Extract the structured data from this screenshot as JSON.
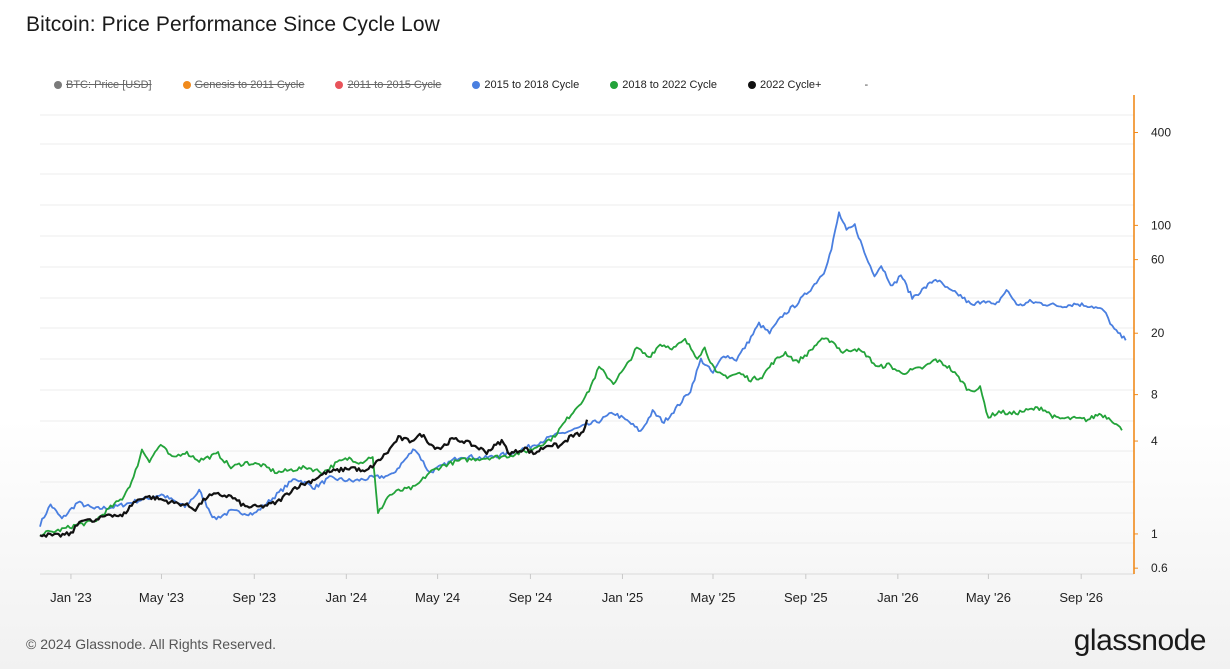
{
  "header": {
    "title": "Bitcoin: Price Performance Since Cycle Low"
  },
  "legend": {
    "items": [
      {
        "label": "BTC: Price [USD]",
        "color": "#7a7a7a",
        "hidden": true
      },
      {
        "label": "Genesis to 2011 Cycle",
        "color": "#f08a1c",
        "hidden": true
      },
      {
        "label": "2011 to 2015 Cycle",
        "color": "#e8535a",
        "hidden": true
      },
      {
        "label": "2015 to 2018 Cycle",
        "color": "#4a7fe0",
        "hidden": false
      },
      {
        "label": "2018 to 2022 Cycle",
        "color": "#23a33a",
        "hidden": false
      },
      {
        "label": "2022 Cycle+",
        "color": "#111111",
        "hidden": false
      }
    ],
    "trailing": "-"
  },
  "footer": {
    "copyright": "© 2024 Glassnode. All Rights Reserved.",
    "brand": "glassnode"
  },
  "chart_data": {
    "type": "line",
    "title": "Bitcoin: Price Performance Since Cycle Low",
    "xlabel": "",
    "ylabel": "",
    "y_scale": "log",
    "ylim": [
      0.55,
      700
    ],
    "y_ticks": [
      0.6,
      1,
      4,
      8,
      20,
      60,
      100,
      400
    ],
    "x_ticks": [
      "Jan '23",
      "May '23",
      "Sep '23",
      "Jan '24",
      "May '24",
      "Sep '24",
      "Jan '25",
      "May '25",
      "Sep '25",
      "Jan '26",
      "May '26",
      "Sep '26"
    ],
    "xlim": [
      "2022-11-21",
      "2026-11-10"
    ],
    "grid": true,
    "legend_position": "top",
    "series": [
      {
        "name": "2015 to 2018 Cycle",
        "color": "#4a7fe0",
        "points": [
          [
            "2022-11-21",
            1.15
          ],
          [
            "2022-12-05",
            1.55
          ],
          [
            "2022-12-20",
            1.25
          ],
          [
            "2023-01-10",
            1.6
          ],
          [
            "2023-02-01",
            1.45
          ],
          [
            "2023-03-01",
            1.5
          ],
          [
            "2023-04-01",
            1.65
          ],
          [
            "2023-05-01",
            1.8
          ],
          [
            "2023-06-01",
            1.5
          ],
          [
            "2023-06-20",
            1.9
          ],
          [
            "2023-07-10",
            1.25
          ],
          [
            "2023-08-01",
            1.4
          ],
          [
            "2023-09-01",
            1.35
          ],
          [
            "2023-10-01",
            1.8
          ],
          [
            "2023-10-25",
            2.3
          ],
          [
            "2023-11-20",
            2.0
          ],
          [
            "2023-12-10",
            2.3
          ],
          [
            "2024-01-10",
            2.2
          ],
          [
            "2024-02-01",
            2.3
          ],
          [
            "2024-03-01",
            2.4
          ],
          [
            "2024-04-01",
            3.6
          ],
          [
            "2024-04-20",
            2.5
          ],
          [
            "2024-05-10",
            2.8
          ],
          [
            "2024-06-01",
            3.2
          ],
          [
            "2024-07-01",
            3.1
          ],
          [
            "2024-08-01",
            3.3
          ],
          [
            "2024-09-01",
            3.7
          ],
          [
            "2024-10-01",
            4.3
          ],
          [
            "2024-11-01",
            4.8
          ],
          [
            "2024-12-01",
            5.4
          ],
          [
            "2024-12-20",
            6.1
          ],
          [
            "2025-01-10",
            5.3
          ],
          [
            "2025-01-25",
            4.6
          ],
          [
            "2025-02-10",
            6.2
          ],
          [
            "2025-02-25",
            5.3
          ],
          [
            "2025-03-15",
            6.7
          ],
          [
            "2025-04-01",
            8.5
          ],
          [
            "2025-04-15",
            13.5
          ],
          [
            "2025-05-01",
            11.0
          ],
          [
            "2025-05-15",
            14.5
          ],
          [
            "2025-06-01",
            13.5
          ],
          [
            "2025-06-15",
            17.0
          ],
          [
            "2025-07-01",
            23.0
          ],
          [
            "2025-07-15",
            20.0
          ],
          [
            "2025-08-01",
            26.0
          ],
          [
            "2025-08-20",
            31.0
          ],
          [
            "2025-09-10",
            40.0
          ],
          [
            "2025-09-25",
            50.0
          ],
          [
            "2025-10-05",
            70.0
          ],
          [
            "2025-10-15",
            120.0
          ],
          [
            "2025-10-25",
            92.0
          ],
          [
            "2025-11-05",
            100.0
          ],
          [
            "2025-11-20",
            62.0
          ],
          [
            "2025-12-01",
            48.0
          ],
          [
            "2025-12-10",
            55.0
          ],
          [
            "2025-12-25",
            40.0
          ],
          [
            "2026-01-05",
            48.0
          ],
          [
            "2026-01-20",
            34.0
          ],
          [
            "2026-02-05",
            39.0
          ],
          [
            "2026-02-20",
            45.0
          ],
          [
            "2026-03-10",
            38.0
          ],
          [
            "2026-03-25",
            35.0
          ],
          [
            "2026-04-10",
            30.0
          ],
          [
            "2026-04-25",
            33.0
          ],
          [
            "2026-05-10",
            30.0
          ],
          [
            "2026-05-25",
            38.0
          ],
          [
            "2026-06-10",
            30.0
          ],
          [
            "2026-06-25",
            32.0
          ],
          [
            "2026-07-15",
            31.0
          ],
          [
            "2026-08-05",
            30.0
          ],
          [
            "2026-08-25",
            31.0
          ],
          [
            "2026-09-15",
            30.0
          ],
          [
            "2026-10-01",
            28.0
          ],
          [
            "2026-10-15",
            21.0
          ],
          [
            "2026-10-30",
            18.0
          ]
        ]
      },
      {
        "name": "2018 to 2022 Cycle",
        "color": "#23a33a",
        "points": [
          [
            "2022-11-21",
            1.0
          ],
          [
            "2022-12-15",
            1.05
          ],
          [
            "2023-01-10",
            1.15
          ],
          [
            "2023-02-01",
            1.2
          ],
          [
            "2023-02-20",
            1.45
          ],
          [
            "2023-03-10",
            1.7
          ],
          [
            "2023-03-25",
            2.3
          ],
          [
            "2023-04-05",
            3.5
          ],
          [
            "2023-04-15",
            3.0
          ],
          [
            "2023-04-30",
            3.8
          ],
          [
            "2023-05-15",
            3.1
          ],
          [
            "2023-06-01",
            3.4
          ],
          [
            "2023-06-20",
            3.0
          ],
          [
            "2023-07-15",
            3.3
          ],
          [
            "2023-08-01",
            2.7
          ],
          [
            "2023-08-20",
            2.9
          ],
          [
            "2023-09-10",
            2.8
          ],
          [
            "2023-10-01",
            2.5
          ],
          [
            "2023-10-20",
            2.6
          ],
          [
            "2023-11-10",
            2.7
          ],
          [
            "2023-12-01",
            2.5
          ],
          [
            "2023-12-20",
            2.9
          ],
          [
            "2024-01-05",
            3.1
          ],
          [
            "2024-01-20",
            2.9
          ],
          [
            "2024-02-05",
            3.2
          ],
          [
            "2024-02-12",
            1.35
          ],
          [
            "2024-02-25",
            1.75
          ],
          [
            "2024-03-10",
            1.9
          ],
          [
            "2024-04-01",
            2.0
          ],
          [
            "2024-04-20",
            2.5
          ],
          [
            "2024-05-10",
            2.8
          ],
          [
            "2024-06-01",
            3.0
          ],
          [
            "2024-07-01",
            3.1
          ],
          [
            "2024-08-01",
            3.2
          ],
          [
            "2024-09-01",
            3.5
          ],
          [
            "2024-10-01",
            4.2
          ],
          [
            "2024-10-25",
            6.0
          ],
          [
            "2024-11-15",
            8.0
          ],
          [
            "2024-12-01",
            12.0
          ],
          [
            "2024-12-20",
            9.5
          ],
          [
            "2025-01-05",
            12.0
          ],
          [
            "2025-01-20",
            16.0
          ],
          [
            "2025-02-05",
            14.0
          ],
          [
            "2025-02-20",
            17.0
          ],
          [
            "2025-03-10",
            16.0
          ],
          [
            "2025-03-25",
            18.0
          ],
          [
            "2025-04-10",
            14.0
          ],
          [
            "2025-04-20",
            16.0
          ],
          [
            "2025-05-05",
            11.0
          ],
          [
            "2025-05-20",
            10.5
          ],
          [
            "2025-06-05",
            11.0
          ],
          [
            "2025-06-20",
            10.0
          ],
          [
            "2025-07-05",
            10.5
          ],
          [
            "2025-07-20",
            13.0
          ],
          [
            "2025-08-05",
            15.0
          ],
          [
            "2025-08-20",
            13.0
          ],
          [
            "2025-09-05",
            15.0
          ],
          [
            "2025-09-20",
            18.0
          ],
          [
            "2025-10-05",
            18.0
          ],
          [
            "2025-10-20",
            15.0
          ],
          [
            "2025-11-05",
            16.0
          ],
          [
            "2025-11-20",
            14.5
          ],
          [
            "2025-12-05",
            12.0
          ],
          [
            "2025-12-20",
            12.5
          ],
          [
            "2026-01-05",
            11.0
          ],
          [
            "2026-01-20",
            11.5
          ],
          [
            "2026-02-05",
            12.0
          ],
          [
            "2026-02-20",
            13.5
          ],
          [
            "2026-03-10",
            12.0
          ],
          [
            "2026-03-25",
            10.0
          ],
          [
            "2026-04-05",
            8.5
          ],
          [
            "2026-04-20",
            8.8
          ],
          [
            "2026-05-01",
            5.7
          ],
          [
            "2026-05-15",
            6.2
          ],
          [
            "2026-06-01",
            6.0
          ],
          [
            "2026-06-20",
            6.3
          ],
          [
            "2026-07-10",
            6.6
          ],
          [
            "2026-07-30",
            5.6
          ],
          [
            "2026-08-20",
            5.6
          ],
          [
            "2026-09-10",
            5.5
          ],
          [
            "2026-09-25",
            6.0
          ],
          [
            "2026-10-10",
            5.6
          ],
          [
            "2026-10-25",
            4.7
          ]
        ]
      },
      {
        "name": "2022 Cycle+",
        "color": "#111111",
        "points": [
          [
            "2022-11-21",
            1.0
          ],
          [
            "2022-12-10",
            0.97
          ],
          [
            "2023-01-01",
            1.0
          ],
          [
            "2023-01-15",
            1.25
          ],
          [
            "2023-02-01",
            1.2
          ],
          [
            "2023-02-20",
            1.35
          ],
          [
            "2023-03-10",
            1.3
          ],
          [
            "2023-03-25",
            1.6
          ],
          [
            "2023-04-10",
            1.75
          ],
          [
            "2023-04-25",
            1.7
          ],
          [
            "2023-05-15",
            1.6
          ],
          [
            "2023-06-01",
            1.55
          ],
          [
            "2023-06-15",
            1.45
          ],
          [
            "2023-07-01",
            1.75
          ],
          [
            "2023-07-15",
            1.8
          ],
          [
            "2023-08-01",
            1.75
          ],
          [
            "2023-08-20",
            1.5
          ],
          [
            "2023-09-10",
            1.5
          ],
          [
            "2023-10-01",
            1.6
          ],
          [
            "2023-10-25",
            2.0
          ],
          [
            "2023-11-15",
            2.2
          ],
          [
            "2023-12-05",
            2.5
          ],
          [
            "2023-12-25",
            2.6
          ],
          [
            "2024-01-10",
            2.7
          ],
          [
            "2024-01-25",
            2.5
          ],
          [
            "2024-02-10",
            2.9
          ],
          [
            "2024-02-25",
            3.4
          ],
          [
            "2024-03-10",
            4.2
          ],
          [
            "2024-03-25",
            4.0
          ],
          [
            "2024-04-10",
            4.4
          ],
          [
            "2024-04-25",
            3.7
          ],
          [
            "2024-05-05",
            3.6
          ],
          [
            "2024-05-20",
            4.1
          ],
          [
            "2024-06-05",
            4.0
          ],
          [
            "2024-06-25",
            3.6
          ],
          [
            "2024-07-05",
            3.4
          ],
          [
            "2024-07-25",
            4.0
          ],
          [
            "2024-08-05",
            3.3
          ],
          [
            "2024-08-25",
            3.6
          ],
          [
            "2024-09-05",
            3.3
          ],
          [
            "2024-09-25",
            3.8
          ],
          [
            "2024-10-10",
            3.7
          ],
          [
            "2024-10-25",
            4.3
          ],
          [
            "2024-11-10",
            4.5
          ],
          [
            "2024-11-15",
            5.5
          ]
        ]
      }
    ]
  }
}
